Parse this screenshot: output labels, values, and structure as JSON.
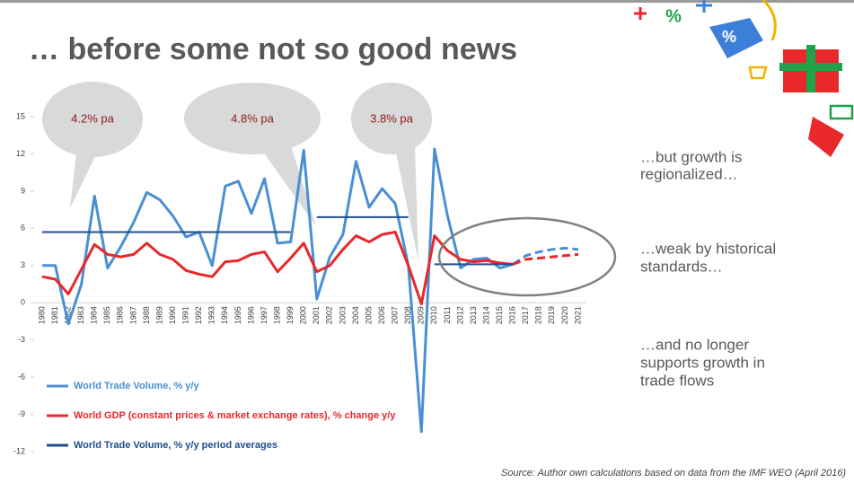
{
  "title": "… before some not so good news",
  "side_notes": [
    "…but growth is",
    "regionalized…",
    "…weak by historical",
    "standards…",
    "…and no longer",
    "supports growth in",
    "trade flows"
  ],
  "source": "Source: Author own calculations based on data from the IMF WEO (April 2016)",
  "icons": [
    "%",
    "%"
  ],
  "chart_data": {
    "type": "line",
    "categories": [
      "1980",
      "1981",
      "1982",
      "1983",
      "1984",
      "1985",
      "1986",
      "1987",
      "1988",
      "1989",
      "1990",
      "1991",
      "1992",
      "1993",
      "1994",
      "1995",
      "1996",
      "1997",
      "1998",
      "1999",
      "2000",
      "2001",
      "2002",
      "2003",
      "2004",
      "2005",
      "2006",
      "2007",
      "2008",
      "2009",
      "2010",
      "2011",
      "2012",
      "2013",
      "2014",
      "2015",
      "2016",
      "2017",
      "2018",
      "2019",
      "2020",
      "2021"
    ],
    "series": [
      {
        "name": "World Trade Volume, % y/y",
        "color": "#4a8fd4",
        "values": [
          3.0,
          3.0,
          -1.7,
          1.5,
          8.6,
          2.8,
          4.5,
          6.5,
          8.9,
          8.3,
          7.0,
          5.3,
          5.7,
          3.0,
          9.4,
          9.8,
          7.2,
          10.0,
          4.8,
          4.9,
          12.3,
          0.3,
          3.7,
          5.5,
          11.4,
          7.7,
          9.2,
          8.0,
          3.0,
          -10.4,
          12.4,
          7.0,
          2.8,
          3.5,
          3.6,
          2.8,
          3.1,
          3.8,
          4.1,
          4.3,
          4.4,
          4.3
        ]
      },
      {
        "name": "World GDP (constant prices & market exchange rates), % change y/y",
        "color": "#e8282b",
        "values": [
          2.1,
          1.9,
          0.7,
          2.7,
          4.7,
          3.9,
          3.7,
          3.9,
          4.8,
          3.9,
          3.5,
          2.6,
          2.3,
          2.1,
          3.3,
          3.4,
          3.9,
          4.1,
          2.5,
          3.6,
          4.8,
          2.5,
          3.0,
          4.3,
          5.4,
          4.9,
          5.5,
          5.7,
          3.0,
          -0.1,
          5.4,
          4.2,
          3.5,
          3.3,
          3.4,
          3.2,
          3.1,
          3.5,
          3.6,
          3.7,
          3.8,
          3.9
        ]
      },
      {
        "name": "World Trade Volume, % y/y period averages",
        "color": "#1f4e8c",
        "values": [
          5.7,
          5.7,
          5.7,
          5.7,
          5.7,
          5.7,
          5.7,
          5.7,
          5.7,
          5.7,
          5.7,
          5.7,
          5.7,
          5.7,
          5.7,
          5.7,
          5.7,
          5.7,
          5.7,
          5.7,
          null,
          6.9,
          6.9,
          6.9,
          6.9,
          6.9,
          6.9,
          6.9,
          6.9,
          null,
          3.1,
          3.1,
          3.1,
          3.1,
          3.1,
          3.1,
          3.1,
          null,
          null,
          null,
          null,
          null
        ]
      }
    ],
    "projection_from": "2016",
    "annotations": [
      "4.2% pa",
      "4.8% pa",
      "3.8% pa"
    ],
    "ylim": [
      -12,
      15
    ],
    "yticks": [
      -12,
      -9,
      -6,
      -3,
      0,
      3,
      6,
      9,
      12,
      15
    ],
    "grid": false
  }
}
